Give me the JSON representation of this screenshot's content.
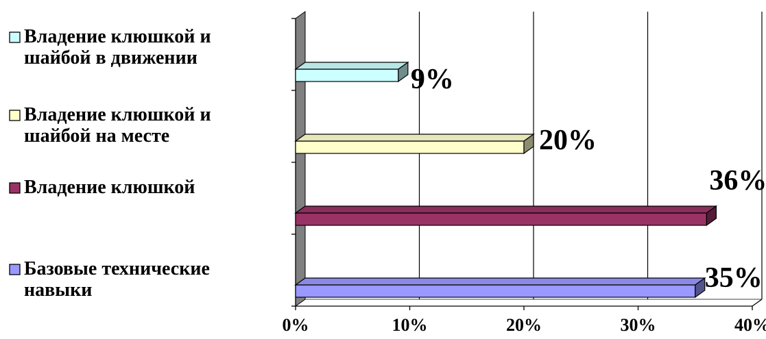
{
  "chart_data": {
    "type": "bar",
    "orientation": "horizontal",
    "three_d": true,
    "categories": [
      "Базовые технические навыки",
      "Владение клюшкой",
      "Владение клюшкой и шайбой на месте",
      "Владение клюшкой и шайбой в движении"
    ],
    "series": [
      {
        "name": "Базовые технические навыки",
        "value": 35,
        "label_text": "35%",
        "legend_lines": [
          "Базовые технические",
          "навыки"
        ],
        "color": "#9999FF"
      },
      {
        "name": "Владение клюшкой",
        "value": 36,
        "label_text": "36%",
        "legend_lines": [
          "Владение клюшкой"
        ],
        "color": "#993366"
      },
      {
        "name": "Владение клюшкой и шайбой на месте",
        "value": 20,
        "label_text": "20%",
        "legend_lines": [
          "Владение клюшкой и",
          "шайбой на месте"
        ],
        "color": "#FFFFCC"
      },
      {
        "name": "Владение клюшкой и шайбой в движении",
        "value": 9,
        "label_text": "9%",
        "legend_lines": [
          "Владение клюшкой и",
          "шайбой в движении"
        ],
        "color": "#CCFFFF"
      }
    ],
    "xlim": [
      0,
      40
    ],
    "x_ticks": [
      0,
      10,
      20,
      30,
      40
    ],
    "x_tick_labels": [
      "0%",
      "10%",
      "20%",
      "30%",
      "40%"
    ],
    "grid": true,
    "legend_position": "left",
    "wall_color": "#808080"
  }
}
